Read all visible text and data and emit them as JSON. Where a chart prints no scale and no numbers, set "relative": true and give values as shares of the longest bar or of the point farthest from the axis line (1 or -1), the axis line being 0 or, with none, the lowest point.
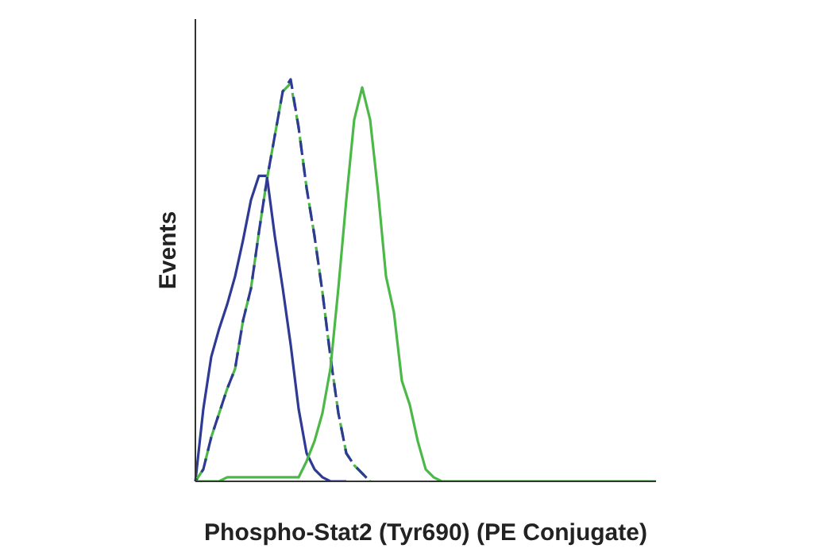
{
  "chart_data": {
    "type": "line",
    "relative": true,
    "xlabel": "Phospho-Stat2 (Tyr690) (PE Conjugate)",
    "ylabel": "Events",
    "grid": false,
    "categories": [
      null,
      null,
      null,
      null,
      null,
      null,
      null,
      null,
      null,
      null,
      null,
      null,
      null,
      null,
      null,
      null,
      null,
      null,
      null,
      null,
      null,
      null,
      null,
      null,
      null,
      null,
      null,
      null,
      null,
      null,
      null,
      null,
      null,
      null,
      null,
      null,
      null,
      null,
      null,
      null,
      null,
      null,
      null,
      null,
      null,
      null,
      null,
      null,
      null,
      null,
      null,
      null,
      null,
      null,
      null,
      null,
      null,
      null,
      null
    ],
    "series": [
      {
        "color": "#2e3a93",
        "line_style": "solid",
        "values": [
          0,
          0.18,
          0.31,
          0.38,
          0.44,
          0.51,
          0.6,
          0.7,
          0.76,
          0.76,
          0.61,
          0.48,
          0.34,
          0.18,
          0.07,
          0.03,
          0.01,
          0,
          0,
          0,
          null,
          null,
          null,
          null,
          null,
          null,
          null,
          null,
          null,
          null,
          null,
          null,
          null,
          null,
          null,
          null,
          null,
          null,
          null,
          null,
          null,
          null,
          null,
          null,
          null,
          null,
          null,
          null,
          null,
          null,
          null,
          null,
          null,
          null,
          null,
          null,
          null,
          null,
          null
        ]
      },
      {
        "color": "#4cb848",
        "line_style": "dashed",
        "values": [
          0,
          0.03,
          0.11,
          0.17,
          0.23,
          0.28,
          0.4,
          0.48,
          0.62,
          0.75,
          0.86,
          0.97,
          0.99,
          0.88,
          0.73,
          0.61,
          0.47,
          0.31,
          0.17,
          0.07,
          0.04,
          0.02,
          0,
          null,
          null,
          null,
          null,
          null,
          null,
          null,
          null,
          null,
          null,
          null,
          null,
          null,
          null,
          null,
          null,
          null,
          null,
          null,
          null,
          null,
          null,
          null,
          null,
          null,
          null,
          null,
          null,
          null,
          null,
          null,
          null,
          null,
          null,
          null,
          null
        ]
      },
      {
        "color": "#2e3a93",
        "line_style": "dashed",
        "values": [
          0,
          0.03,
          0.11,
          0.17,
          0.23,
          0.28,
          0.4,
          0.48,
          0.62,
          0.75,
          0.86,
          0.97,
          1,
          0.88,
          0.73,
          0.61,
          0.47,
          0.31,
          0.17,
          0.07,
          0.04,
          0.02,
          0,
          null,
          null,
          null,
          null,
          null,
          null,
          null,
          null,
          null,
          null,
          null,
          null,
          null,
          null,
          null,
          null,
          null,
          null,
          null,
          null,
          null,
          null,
          null,
          null,
          null,
          null,
          null,
          null,
          null,
          null,
          null,
          null,
          null,
          null,
          null,
          null
        ]
      },
      {
        "color": "#4cb848",
        "line_style": "solid",
        "values": [
          0,
          0,
          0,
          0,
          0.01,
          0.01,
          0.01,
          0.01,
          0.01,
          0.01,
          0.01,
          0.01,
          0.01,
          0.01,
          0.05,
          0.1,
          0.17,
          0.28,
          0.48,
          0.7,
          0.9,
          0.98,
          0.9,
          0.72,
          0.51,
          0.42,
          0.25,
          0.19,
          0.1,
          0.03,
          0.01,
          0,
          0,
          0,
          0,
          0,
          0,
          0,
          0,
          0,
          0,
          0,
          0,
          0,
          0,
          0,
          0,
          0,
          0,
          0,
          0,
          0,
          0,
          0,
          0,
          0,
          0,
          0,
          0
        ]
      }
    ]
  }
}
